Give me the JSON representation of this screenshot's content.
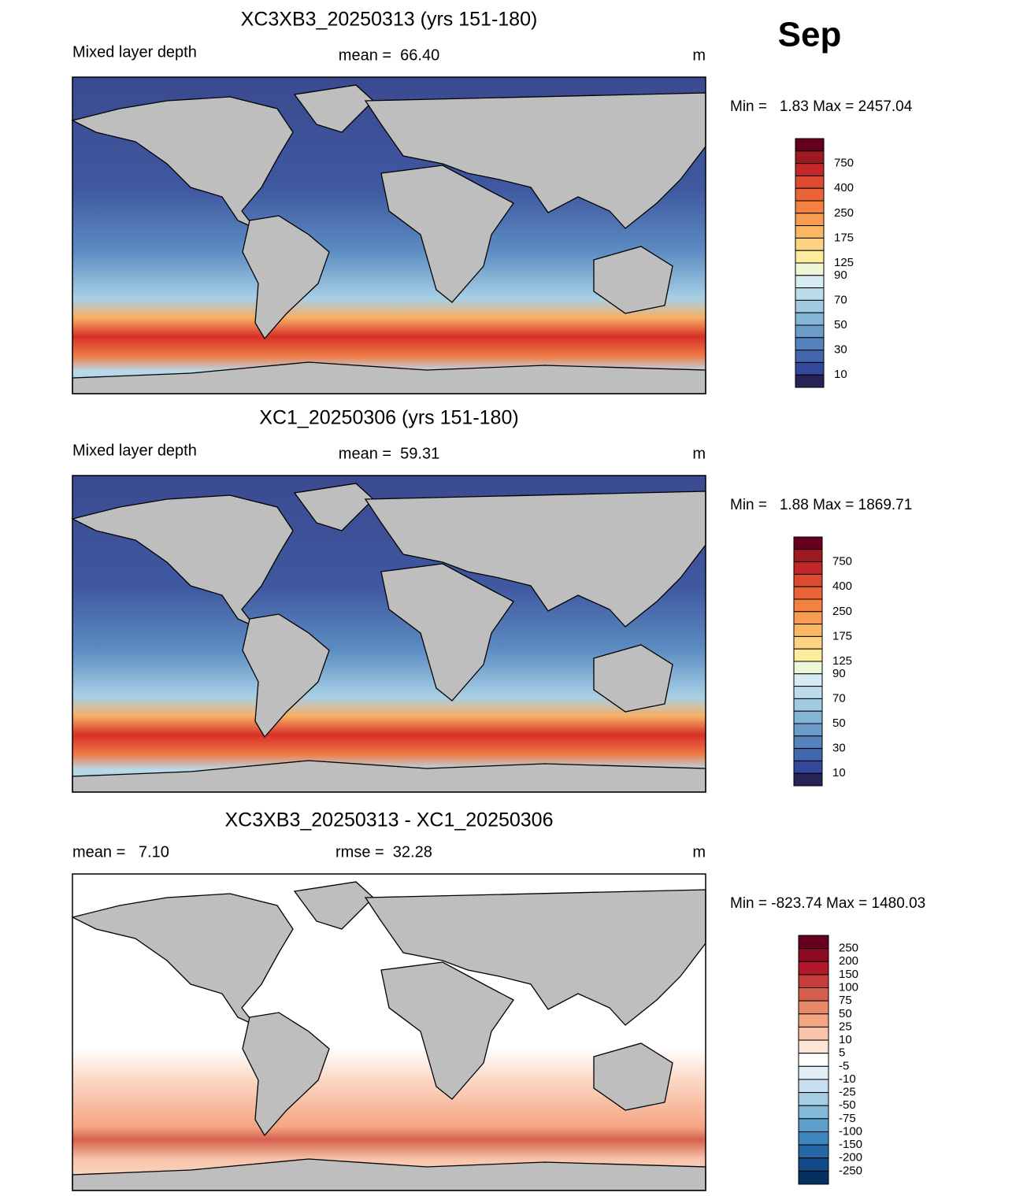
{
  "month": "Sep",
  "panels": [
    {
      "title": "XC3XB3_20250313 (yrs 151-180)",
      "left": "Mixed layer depth",
      "center": "mean =  66.40",
      "units": "m",
      "min_max": "Min =   1.83 Max = 2457.04",
      "colorbar": {
        "labels": [
          "750",
          "400",
          "250",
          "175",
          "125",
          "90",
          "70",
          "50",
          "30",
          "10"
        ],
        "colors": [
          "#67001f",
          "#9e1a23",
          "#c4272a",
          "#dd4a32",
          "#ea6438",
          "#f3813f",
          "#f89c52",
          "#fbb864",
          "#fdd283",
          "#fcec9e",
          "#eef6d8",
          "#d7ecf2",
          "#bcdceb",
          "#a0cbe2",
          "#84b4d6",
          "#6a9bc9",
          "#5482bc",
          "#4267ad",
          "#33489a",
          "#262357"
        ]
      }
    },
    {
      "title": "XC1_20250306 (yrs 151-180)",
      "left": "Mixed layer depth",
      "center": "mean =  59.31",
      "units": "m",
      "min_max": "Min =   1.88 Max = 1869.71",
      "colorbar": {
        "labels": [
          "750",
          "400",
          "250",
          "175",
          "125",
          "90",
          "70",
          "50",
          "30",
          "10"
        ],
        "colors": [
          "#67001f",
          "#9e1a23",
          "#c4272a",
          "#dd4a32",
          "#ea6438",
          "#f3813f",
          "#f89c52",
          "#fbb864",
          "#fdd283",
          "#fcec9e",
          "#eef6d8",
          "#d7ecf2",
          "#bcdceb",
          "#a0cbe2",
          "#84b4d6",
          "#6a9bc9",
          "#5482bc",
          "#4267ad",
          "#33489a",
          "#262357"
        ]
      }
    },
    {
      "title": "XC3XB3_20250313 - XC1_20250306",
      "left": "mean =   7.10",
      "center": "rmse =  32.28",
      "units": "m",
      "min_max": "Min = -823.74 Max = 1480.03",
      "colorbar": {
        "labels": [
          "250",
          "200",
          "150",
          "100",
          "75",
          "50",
          "25",
          "10",
          "5",
          "-5",
          "-10",
          "-25",
          "-50",
          "-75",
          "-100",
          "-150",
          "-200",
          "-250"
        ],
        "colors": [
          "#67001f",
          "#8c0b22",
          "#b2182b",
          "#c43c3c",
          "#d6604d",
          "#e8896a",
          "#f4a582",
          "#f9c4a9",
          "#fde4d6",
          "#ffffff",
          "#e2eef5",
          "#c6def0",
          "#a6cde3",
          "#82b8d9",
          "#5d9ecd",
          "#3f86be",
          "#2767a8",
          "#154a8a",
          "#053061"
        ]
      }
    }
  ]
}
